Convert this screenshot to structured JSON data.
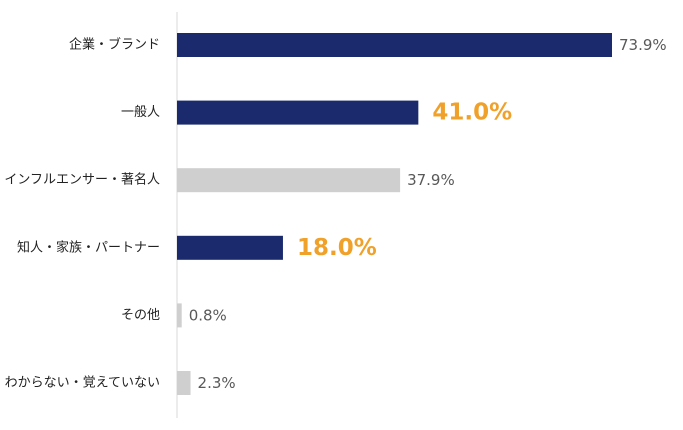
{
  "chart_data": {
    "type": "bar",
    "orientation": "horizontal",
    "title": "",
    "xlabel": "",
    "ylabel": "",
    "xlim": [
      0,
      100
    ],
    "grid": false,
    "legend": "none",
    "categories": [
      "企業・ブランド",
      "一般人",
      "インフルエンサー・著名人",
      "知人・家族・パートナー",
      "その他",
      "わからない・覚えていない"
    ],
    "values": [
      73.9,
      41.0,
      37.9,
      18.0,
      0.8,
      2.3
    ],
    "value_labels": [
      "73.9%",
      "41.0%",
      "37.9%",
      "18.0%",
      "0.8%",
      "2.3%"
    ],
    "bar_colors": [
      "#1a2a6c",
      "#1a2a6c",
      "#cfcfcf",
      "#1a2a6c",
      "#cfcfcf",
      "#cfcfcf"
    ],
    "highlighted_labels": [
      false,
      true,
      false,
      true,
      false,
      false
    ],
    "colors": {
      "primary_bar": "#1a2a6c",
      "secondary_bar": "#cfcfcf",
      "highlight_text": "#f0a12a",
      "value_text": "#595959",
      "axis": "#d9d9d9"
    }
  }
}
